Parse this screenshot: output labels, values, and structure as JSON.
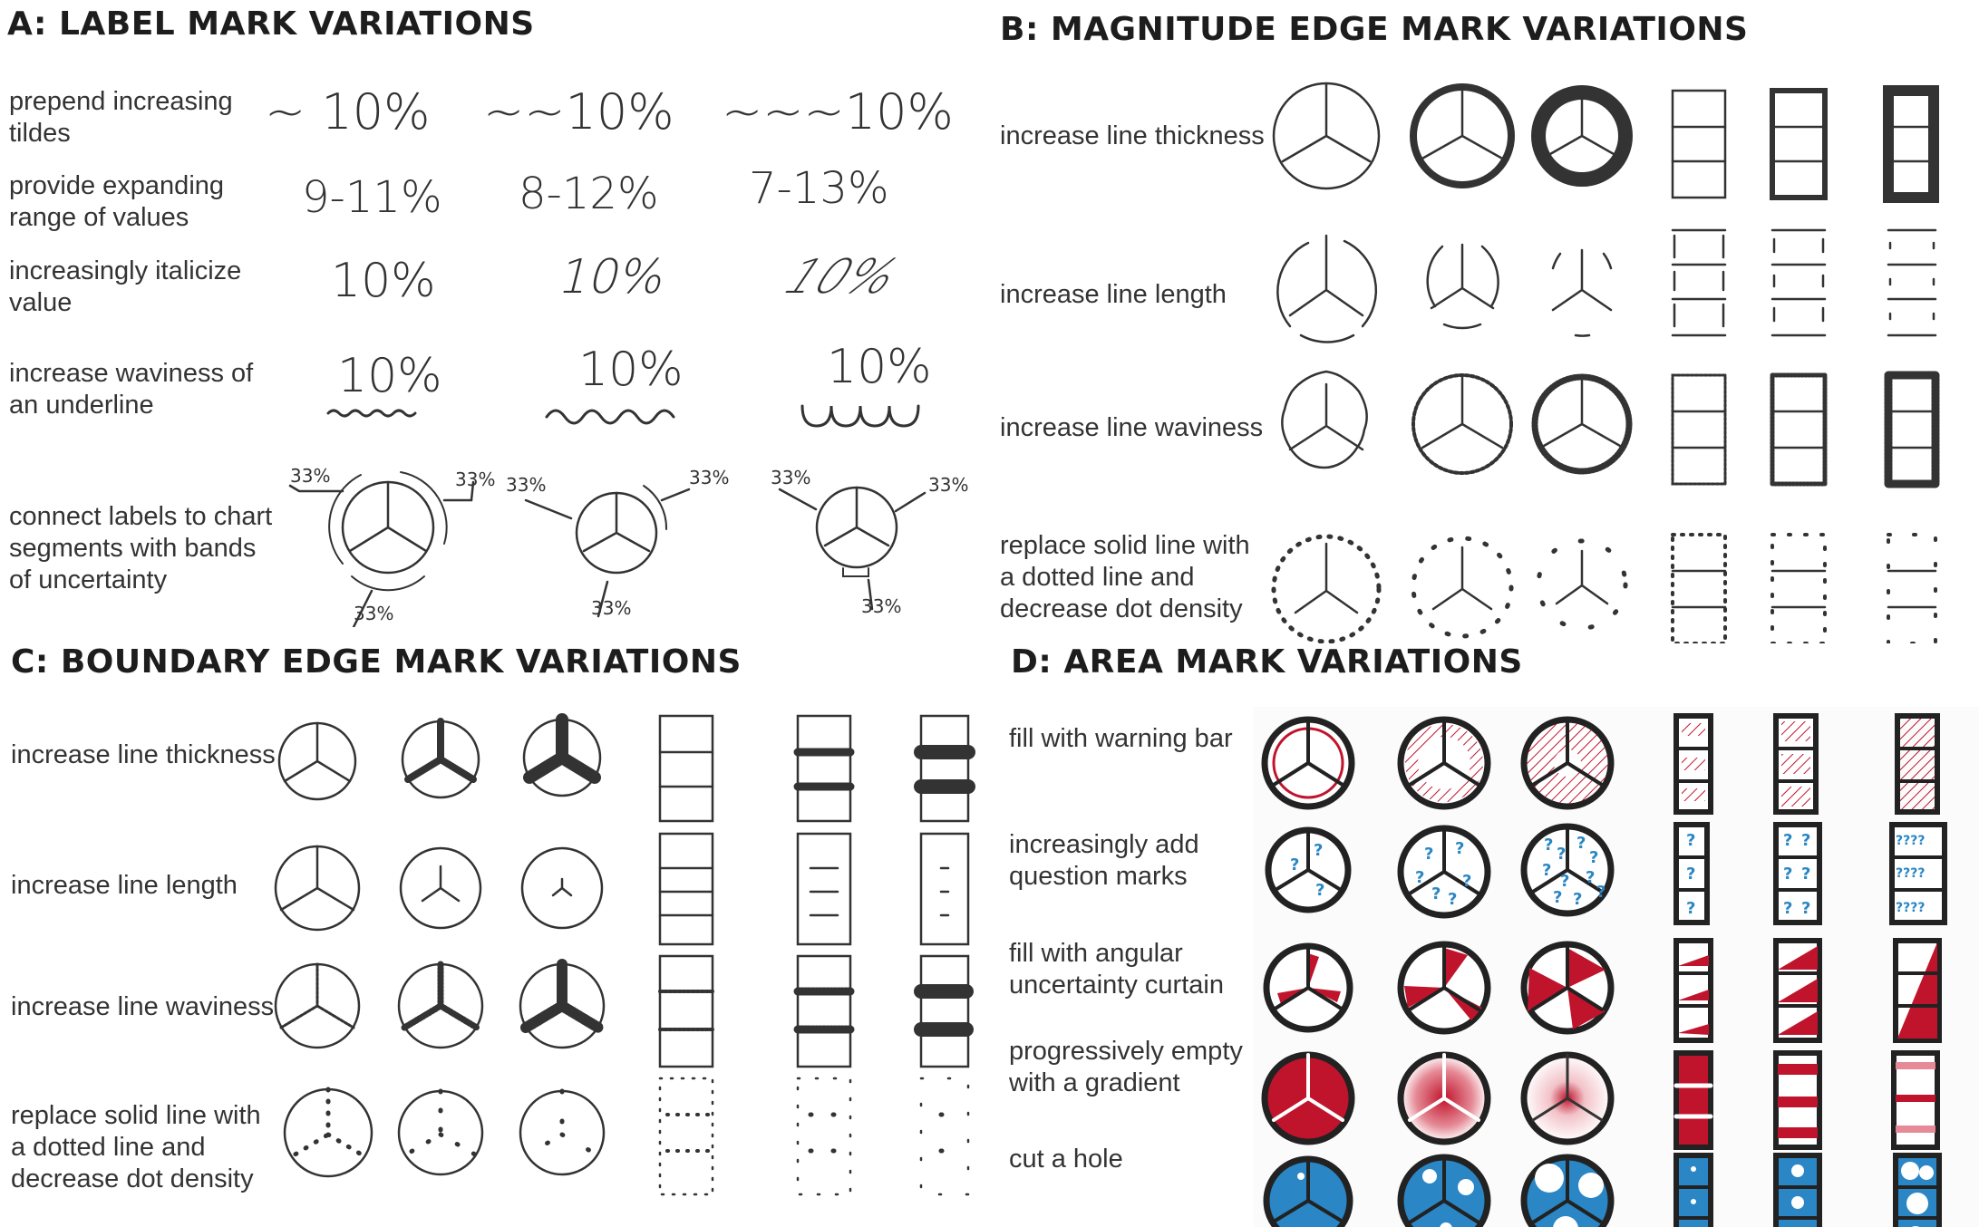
{
  "panels": {
    "a": {
      "title": "A: LABEL MARK VARIATIONS",
      "rows": [
        {
          "label": "prepend increasing\ntildes",
          "values": [
            "~ 10%",
            "~~10%",
            "~~~10%"
          ]
        },
        {
          "label": "provide expanding\nrange of values",
          "values": [
            "9-11%",
            "8-12%",
            "7-13%"
          ]
        },
        {
          "label": "increasingly italicize\nvalue",
          "values": [
            "10%",
            "10%",
            "10%"
          ]
        },
        {
          "label": "increase waviness of\nan underline",
          "values": [
            "10%",
            "10%",
            "10%"
          ]
        },
        {
          "label": "connect labels to chart\nsegments with bands\nof uncertainty",
          "values": [
            "33%",
            "33%",
            "33%"
          ]
        }
      ]
    },
    "b": {
      "title": "B: MAGNITUDE EDGE MARK VARIATIONS",
      "rows": [
        {
          "label": "increase line thickness"
        },
        {
          "label": "increase line length"
        },
        {
          "label": "increase line waviness"
        },
        {
          "label": "replace solid line with\na dotted line and\ndecrease dot density"
        }
      ]
    },
    "c": {
      "title": "C: BOUNDARY EDGE MARK VARIATIONS",
      "rows": [
        {
          "label": "increase line thickness"
        },
        {
          "label": "increase line length"
        },
        {
          "label": "increase line waviness"
        },
        {
          "label": "replace solid line with\na dotted line and\ndecrease dot density"
        }
      ]
    },
    "d": {
      "title": "D: AREA MARK VARIATIONS",
      "rows": [
        {
          "label": "fill with warning bar"
        },
        {
          "label": "increasingly add\nquestion marks"
        },
        {
          "label": "fill with angular\nuncertainty curtain"
        },
        {
          "label": "progressively empty\nwith a gradient"
        },
        {
          "label": "cut a hole"
        }
      ]
    }
  },
  "colors": {
    "ink": "#333333",
    "red": "#c0142c",
    "blue": "#2a86c4",
    "question": "#2a86c4"
  }
}
